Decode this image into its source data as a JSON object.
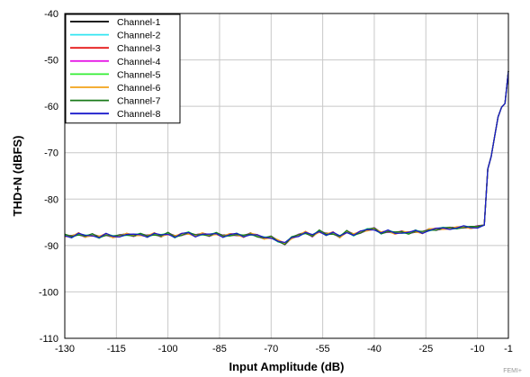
{
  "chart_data": {
    "type": "line",
    "title": "",
    "xlabel": "Input Amplitude (dB)",
    "ylabel": "THD+N (dBFS)",
    "xlim": [
      -130,
      -1
    ],
    "ylim": [
      -110,
      -40
    ],
    "xticks": [
      -130,
      -115,
      -100,
      -85,
      -70,
      -55,
      -40,
      -25,
      -10,
      -1
    ],
    "yticks": [
      -40,
      -50,
      -60,
      -70,
      -80,
      -90,
      -100,
      -110
    ],
    "grid": true,
    "legend_position": "top-left",
    "series": [
      {
        "name": "Channel-1",
        "color": "#000000"
      },
      {
        "name": "Channel-2",
        "color": "#33e6f2"
      },
      {
        "name": "Channel-3",
        "color": "#e61a1a"
      },
      {
        "name": "Channel-4",
        "color": "#e61ae6"
      },
      {
        "name": "Channel-5",
        "color": "#33ee33"
      },
      {
        "name": "Channel-6",
        "color": "#f2a31a"
      },
      {
        "name": "Channel-7",
        "color": "#1a7a1a"
      },
      {
        "name": "Channel-8",
        "color": "#1a1acc"
      }
    ],
    "x": [
      -130,
      -128,
      -126,
      -124,
      -122,
      -120,
      -118,
      -116,
      -114,
      -112,
      -110,
      -108,
      -106,
      -104,
      -102,
      -100,
      -98,
      -96,
      -94,
      -92,
      -90,
      -88,
      -86,
      -84,
      -82,
      -80,
      -78,
      -76,
      -74,
      -72,
      -70,
      -68,
      -66,
      -64,
      -62,
      -60,
      -58,
      -56,
      -54,
      -52,
      -50,
      -48,
      -46,
      -44,
      -42,
      -40,
      -38,
      -36,
      -34,
      -32,
      -30,
      -28,
      -26,
      -24,
      -22,
      -20,
      -18,
      -16,
      -14,
      -12,
      -10,
      -8,
      -7,
      -6,
      -5,
      -4,
      -3,
      -2,
      -1
    ],
    "y": [
      -87.8,
      -88.1,
      -87.5,
      -88.0,
      -87.7,
      -88.2,
      -87.6,
      -88.1,
      -87.9,
      -87.6,
      -87.8,
      -87.6,
      -88.0,
      -87.5,
      -87.9,
      -87.4,
      -88.1,
      -87.6,
      -87.3,
      -87.9,
      -87.5,
      -87.8,
      -87.4,
      -88.0,
      -87.7,
      -87.6,
      -88.0,
      -87.5,
      -87.9,
      -88.4,
      -88.2,
      -89.0,
      -89.6,
      -88.3,
      -87.8,
      -87.2,
      -87.9,
      -86.9,
      -87.6,
      -87.3,
      -88.1,
      -87.0,
      -87.7,
      -87.1,
      -86.6,
      -86.4,
      -87.3,
      -86.9,
      -87.3,
      -87.1,
      -87.3,
      -86.9,
      -87.2,
      -86.6,
      -86.5,
      -86.3,
      -86.3,
      -86.2,
      -86.0,
      -86.1,
      -86.0,
      -85.6,
      -73.5,
      -70.8,
      -66.5,
      -62.3,
      -60.2,
      -59.4,
      -52.4
    ],
    "watermark_text": "FEMI+"
  }
}
